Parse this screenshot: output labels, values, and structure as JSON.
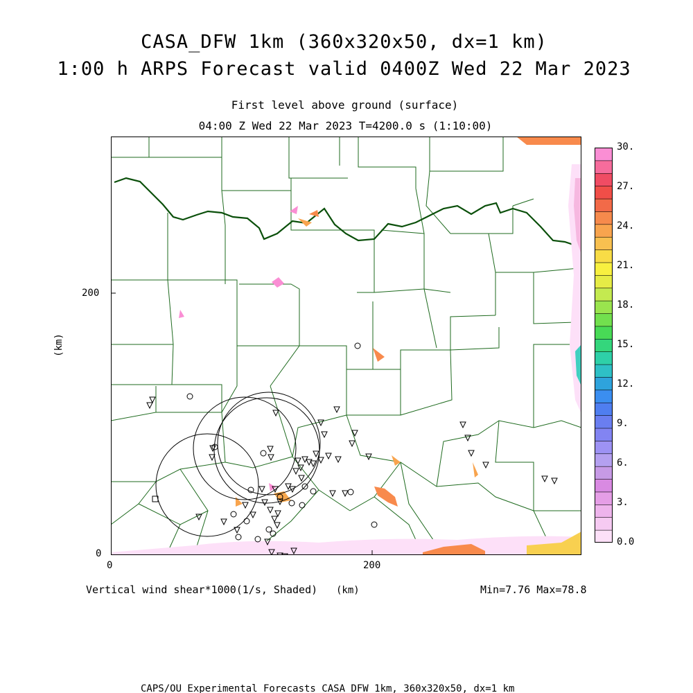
{
  "title_line1": "CASA_DFW 1km (360x320x50, dx=1 km)",
  "title_line2": "1:00 h ARPS Forecast valid 0400Z Wed 22 Mar 2023",
  "level_label": "First level above ground (surface)",
  "time_label": "04:00 Z Wed 22 Mar 2023   T=4200.0 s (1:10:00)",
  "field_label": "Vertical wind shear*1000(1/s, Shaded)",
  "units_label": "(km)",
  "y_axis_label": "(km)",
  "minmax_label": "Min=7.76 Max=78.8",
  "footer_label": "CAPS/OU Experimental Forecasts  CASA DFW 1km, 360x320x50, dx=1 km",
  "x_ticks": [
    "0",
    "200"
  ],
  "y_ticks": [
    "0",
    "200"
  ],
  "colorbar": {
    "labels": [
      "0.0",
      "3.",
      "6.",
      "9.",
      "12.",
      "15.",
      "18.",
      "21.",
      "24.",
      "27.",
      "30."
    ],
    "colors": [
      "#fde0f8",
      "#f6caf2",
      "#eeb4ec",
      "#e59ee6",
      "#d98ae2",
      "#c79ae6",
      "#b4a0f0",
      "#9d92f4",
      "#8284f2",
      "#6a7ef0",
      "#4f7ef0",
      "#3b8ef0",
      "#2ea3dc",
      "#2ec0c6",
      "#2ed0a8",
      "#34d67c",
      "#48da56",
      "#72e04e",
      "#9ae44e",
      "#c4ea50",
      "#e6ec46",
      "#f8f040",
      "#f8dc46",
      "#f8c050",
      "#f8a44e",
      "#f68a4c",
      "#f26a48",
      "#f04e48",
      "#f04c64",
      "#f66c9c",
      "#fa8ed4"
    ]
  },
  "symbols_triangle": [
    [
      56,
      388
    ],
    [
      60,
      380
    ],
    [
      146,
      463
    ],
    [
      147,
      450
    ],
    [
      127,
      549
    ],
    [
      182,
      568
    ],
    [
      163,
      556
    ],
    [
      238,
      399
    ],
    [
      230,
      451
    ],
    [
      231,
      463
    ],
    [
      267,
      483
    ],
    [
      270,
      468
    ],
    [
      274,
      478
    ],
    [
      280,
      466
    ],
    [
      275,
      493
    ],
    [
      286,
      470
    ],
    [
      292,
      472
    ],
    [
      296,
      458
    ],
    [
      303,
      467
    ],
    [
      303,
      413
    ],
    [
      314,
      461
    ],
    [
      326,
      394
    ],
    [
      328,
      466
    ],
    [
      320,
      515
    ],
    [
      338,
      515
    ],
    [
      348,
      443
    ],
    [
      352,
      428
    ],
    [
      372,
      462
    ],
    [
      308,
      430
    ],
    [
      218,
      509
    ],
    [
      222,
      528
    ],
    [
      194,
      532
    ],
    [
      205,
      546
    ],
    [
      241,
      544
    ],
    [
      244,
      527
    ],
    [
      256,
      505
    ],
    [
      262,
      509
    ],
    [
      226,
      585
    ],
    [
      230,
      539
    ],
    [
      237,
      509
    ],
    [
      236,
      552
    ],
    [
      232,
      600
    ],
    [
      240,
      561
    ],
    [
      244,
      605
    ],
    [
      245,
      615
    ],
    [
      251,
      606
    ],
    [
      264,
      598
    ],
    [
      272,
      621
    ],
    [
      292,
      621
    ],
    [
      305,
      620
    ],
    [
      318,
      646
    ],
    [
      345,
      687
    ],
    [
      422,
      671
    ],
    [
      467,
      713
    ],
    [
      465,
      645
    ],
    [
      520,
      457
    ],
    [
      508,
      416
    ],
    [
      515,
      435
    ],
    [
      541,
      474
    ],
    [
      554,
      643
    ],
    [
      568,
      641
    ],
    [
      557,
      641
    ],
    [
      566,
      643
    ],
    [
      574,
      641
    ],
    [
      595,
      657
    ],
    [
      626,
      494
    ],
    [
      640,
      497
    ],
    [
      590,
      714
    ]
  ],
  "symbols_circle": [
    [
      356,
      302
    ],
    [
      114,
      375
    ],
    [
      150,
      448
    ],
    [
      220,
      457
    ],
    [
      202,
      510
    ],
    [
      177,
      545
    ],
    [
      196,
      555
    ],
    [
      228,
      567
    ],
    [
      184,
      578
    ],
    [
      212,
      581
    ],
    [
      234,
      573
    ],
    [
      244,
      520
    ],
    [
      261,
      529
    ],
    [
      276,
      532
    ],
    [
      280,
      505
    ],
    [
      292,
      512
    ],
    [
      346,
      513
    ],
    [
      380,
      560
    ],
    [
      355,
      631
    ],
    [
      175,
      634
    ],
    [
      199,
      676
    ],
    [
      356,
      703
    ],
    [
      536,
      633
    ],
    [
      566,
      735
    ],
    [
      45,
      662
    ],
    [
      46,
      777
    ],
    [
      211,
      787
    ],
    [
      238,
      785
    ]
  ],
  "symbols_square": [
    [
      64,
      523
    ]
  ],
  "range_rings": [
    [
      139,
      101,
      74
    ],
    [
      193,
      154,
      74
    ],
    [
      225,
      151,
      76
    ],
    [
      228,
      161,
      74
    ]
  ]
}
